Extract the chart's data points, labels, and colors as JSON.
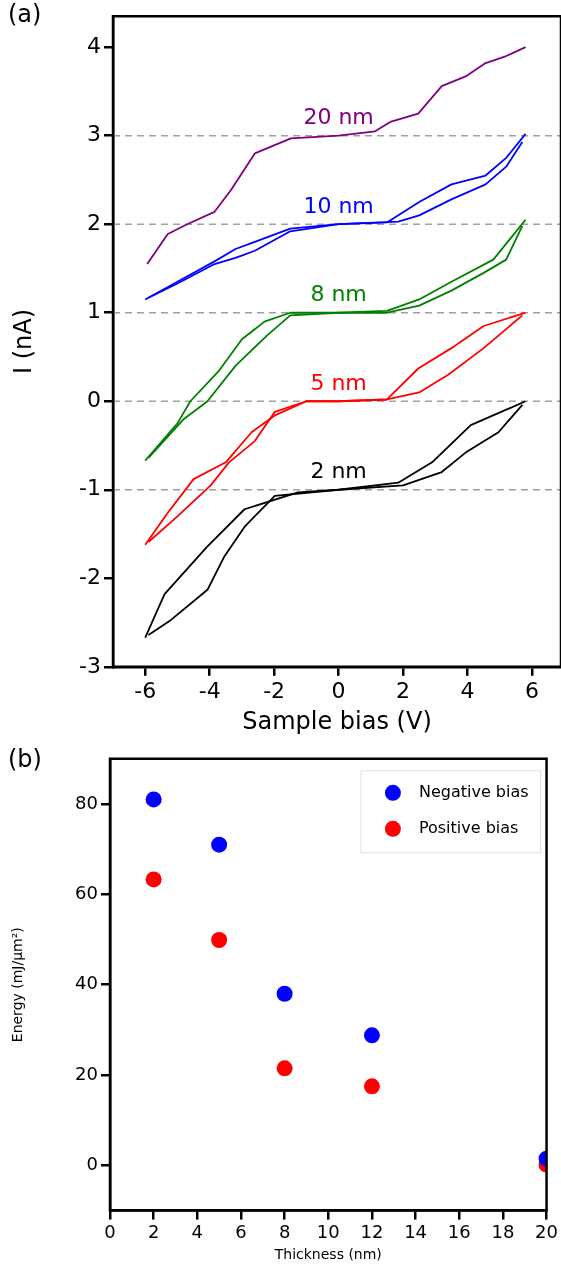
{
  "chart_data": [
    {
      "type": "line",
      "xlabel": "Sample bias (V)",
      "ylabel": "I (nA)",
      "annotations": [
        "(a)"
      ],
      "xlim": [
        -7,
        6.9
      ],
      "ylim": [
        -3,
        4.35
      ],
      "xticks": [
        -6,
        -4,
        -2,
        0,
        2,
        4,
        6
      ],
      "yticks": [
        -3,
        -2,
        -1,
        0,
        1,
        2,
        3,
        4
      ],
      "grid": false,
      "line_style": "solid",
      "ref_lines": [
        {
          "axis": "y",
          "value": 3,
          "color": "#a0a0a0",
          "line_style": "dashed"
        },
        {
          "axis": "y",
          "value": 2,
          "color": "#a0a0a0",
          "line_style": "dashed"
        },
        {
          "axis": "y",
          "value": 1,
          "color": "#a0a0a0",
          "line_style": "dashed"
        },
        {
          "axis": "y",
          "value": 0,
          "color": "#a0a0a0",
          "line_style": "dashed"
        },
        {
          "axis": "y",
          "value": -1,
          "color": "#a0a0a0",
          "line_style": "dashed"
        }
      ],
      "series": [
        {
          "name": "20 nm",
          "color": "#800080",
          "x": [
            -5.94,
            -5.3,
            -4.7,
            -3.85,
            -3.35,
            -2.6,
            -1.48,
            0,
            1.13,
            1.63,
            2.47,
            3.2,
            3.94,
            4.56,
            5.2,
            5.8
          ],
          "values": [
            1.55,
            1.89,
            2.0,
            2.14,
            2.38,
            2.8,
            2.97,
            3.0,
            3.05,
            3.16,
            3.25,
            3.56,
            3.67,
            3.82,
            3.9,
            4.0
          ]
        },
        {
          "name": "10 nm",
          "color": "#0000ff",
          "x": [
            -6,
            -5,
            -3.85,
            -3.2,
            -2.6,
            -1.5,
            0,
            1.5,
            2.5,
            3.5,
            4.56,
            5.2,
            5.8
          ],
          "values": [
            1.15,
            1.35,
            1.58,
            1.72,
            1.8,
            1.95,
            2.0,
            2.02,
            2.25,
            2.45,
            2.55,
            2.75,
            3.02
          ]
        },
        {
          "color": "#0000ff",
          "x": [
            -5.9,
            -5,
            -3.85,
            -3.2,
            -2.6,
            -1.5,
            0,
            1.85,
            2.5,
            3.5,
            4.56,
            5.2,
            5.7
          ],
          "values": [
            1.17,
            1.33,
            1.55,
            1.62,
            1.7,
            1.92,
            2.0,
            2.03,
            2.1,
            2.28,
            2.45,
            2.65,
            2.93
          ]
        },
        {
          "name": "8 nm",
          "color": "#008000",
          "x": [
            -6,
            -5,
            -4.6,
            -3.7,
            -3,
            -2.3,
            -1.5,
            0,
            1.5,
            2.5,
            3.5,
            4.8,
            5.8
          ],
          "values": [
            -0.67,
            -0.25,
            0.0,
            0.35,
            0.7,
            0.9,
            1.0,
            1.0,
            1.02,
            1.15,
            1.35,
            1.6,
            2.05
          ]
        },
        {
          "color": "#008000",
          "x": [
            -5.9,
            -4.8,
            -4.07,
            -3.2,
            -2.2,
            -1.5,
            0,
            1.5,
            2.5,
            3.5,
            4.5,
            5.2,
            5.7
          ],
          "values": [
            -0.64,
            -0.2,
            0.0,
            0.4,
            0.75,
            0.97,
            1.0,
            1.0,
            1.08,
            1.25,
            1.45,
            1.6,
            1.98
          ]
        },
        {
          "name": "5 nm",
          "color": "#ff0000",
          "x": [
            -6,
            -5.3,
            -4.5,
            -3.5,
            -2.7,
            -1.98,
            -1,
            0,
            1.5,
            2.47,
            3.5,
            4.5,
            5.8
          ],
          "values": [
            -1.62,
            -1.26,
            -0.88,
            -0.69,
            -0.35,
            -0.16,
            0.0,
            0.0,
            0.02,
            0.37,
            0.6,
            0.85,
            1.0
          ]
        },
        {
          "color": "#ff0000",
          "x": [
            -5.9,
            -5,
            -3.97,
            -3.4,
            -2.6,
            -1.98,
            -1,
            0,
            1.5,
            2.5,
            3.4,
            4.5,
            5.7
          ],
          "values": [
            -1.59,
            -1.3,
            -0.95,
            -0.69,
            -0.45,
            -0.12,
            0.0,
            0.0,
            0.02,
            0.1,
            0.3,
            0.6,
            0.97
          ]
        },
        {
          "name": "2 nm",
          "color": "#000000",
          "x": [
            -6,
            -5.4,
            -4.07,
            -2.92,
            -1.26,
            0,
            1.85,
            2.9,
            4.1,
            5.8
          ],
          "values": [
            -2.67,
            -2.18,
            -1.64,
            -1.22,
            -1.03,
            -1.0,
            -0.92,
            -0.69,
            -0.27,
            0.0
          ]
        },
        {
          "color": "#000000",
          "x": [
            -5.9,
            -5.2,
            -4.07,
            -3.54,
            -2.9,
            -1.98,
            0,
            2,
            3.2,
            3.94,
            4.96,
            5.7
          ],
          "values": [
            -2.64,
            -2.47,
            -2.13,
            -1.75,
            -1.41,
            -1.07,
            -1.0,
            -0.95,
            -0.8,
            -0.58,
            -0.35,
            -0.04
          ]
        }
      ]
    },
    {
      "type": "scatter",
      "xlabel": "Thickness (nm)",
      "ylabel": "Energy (mJ/µm²)",
      "annotations": [
        "(b)"
      ],
      "xlim": [
        0,
        20
      ],
      "ylim": [
        -10,
        90
      ],
      "xticks": [
        0,
        2,
        4,
        6,
        8,
        10,
        12,
        14,
        16,
        18,
        20
      ],
      "yticks": [
        0,
        20,
        40,
        60,
        80
      ],
      "grid": false,
      "marker": "circle",
      "legend": "top right",
      "series": [
        {
          "name": "Negative bias",
          "color": "#0000ff",
          "x": [
            2,
            5,
            8,
            12,
            20
          ],
          "values": [
            81,
            71,
            38,
            28.8,
            1.5
          ]
        },
        {
          "name": "Positive bias",
          "color": "#ff0000",
          "x": [
            2,
            5,
            8,
            12,
            20
          ],
          "values": [
            63.3,
            49.9,
            21.5,
            17.5,
            0.2
          ]
        }
      ]
    }
  ]
}
